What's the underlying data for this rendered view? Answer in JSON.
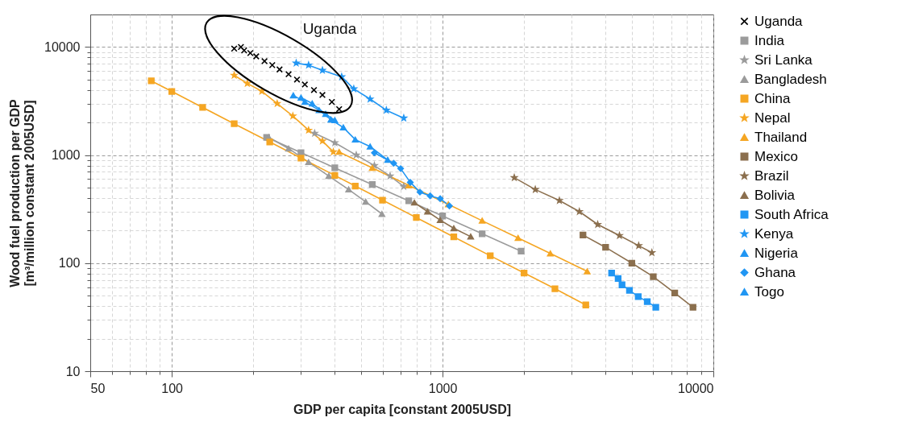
{
  "chart_data": {
    "type": "line",
    "xlabel": "GDP per capita [constant 2005USD]",
    "ylabel": "Wood fuel production per GDP [m³/million constant 2005USD]",
    "log": "xy",
    "grid": true,
    "legend": "right",
    "xlim": [
      50,
      10000
    ],
    "ylim": [
      10,
      20000
    ],
    "xticks": [
      50,
      {
        "value": 60,
        "label": null
      },
      {
        "value": 70,
        "label": null
      },
      {
        "value": 80,
        "label": null
      },
      {
        "value": 90,
        "label": null
      },
      100,
      {
        "value": 200,
        "label": null
      },
      {
        "value": 300,
        "label": null
      },
      {
        "value": 400,
        "label": null
      },
      {
        "value": 500,
        "label": null
      },
      {
        "value": 600,
        "label": null
      },
      {
        "value": 700,
        "label": null
      },
      {
        "value": 800,
        "label": null
      },
      {
        "value": 900,
        "label": null
      },
      1000,
      {
        "value": 2000,
        "label": null
      },
      {
        "value": 3000,
        "label": null
      },
      {
        "value": 4000,
        "label": null
      },
      {
        "value": 5000,
        "label": null
      },
      {
        "value": 6000,
        "label": null
      },
      {
        "value": 7000,
        "label": null
      },
      {
        "value": 8000,
        "label": null
      },
      {
        "value": 9000,
        "label": null
      },
      10000
    ],
    "yticks": [
      10,
      {
        "value": 20,
        "label": null
      },
      {
        "value": 30,
        "label": null
      },
      {
        "value": 40,
        "label": null
      },
      {
        "value": 50,
        "label": null
      },
      {
        "value": 60,
        "label": null
      },
      {
        "value": 70,
        "label": null
      },
      {
        "value": 80,
        "label": null
      },
      {
        "value": 90,
        "label": null
      },
      100,
      {
        "value": 200,
        "label": null
      },
      {
        "value": 300,
        "label": null
      },
      {
        "value": 400,
        "label": null
      },
      {
        "value": 500,
        "label": null
      },
      {
        "value": 600,
        "label": null
      },
      {
        "value": 700,
        "label": null
      },
      {
        "value": 800,
        "label": null
      },
      {
        "value": 900,
        "label": null
      },
      1000,
      {
        "value": 2000,
        "label": null
      },
      {
        "value": 3000,
        "label": null
      },
      {
        "value": 4000,
        "label": null
      },
      {
        "value": 5000,
        "label": null
      },
      {
        "value": 6000,
        "label": null
      },
      {
        "value": 7000,
        "label": null
      },
      {
        "value": 8000,
        "label": null
      },
      {
        "value": 9000,
        "label": null
      },
      10000
    ],
    "annotations": [
      "Uganda"
    ],
    "series": [
      {
        "name": "Uganda",
        "type": "scatter",
        "marker": "cross",
        "color": "#000000",
        "x": [
          170,
          180,
          185,
          195,
          205,
          220,
          235,
          250,
          270,
          290,
          310,
          335,
          360,
          390,
          415
        ],
        "values": [
          9670,
          10000,
          9300,
          8800,
          8200,
          7400,
          6800,
          6200,
          5600,
          5000,
          4500,
          4000,
          3600,
          3100,
          2660
        ]
      },
      {
        "name": "India",
        "marker": "square",
        "color": "#9b9b9b",
        "x": [
          224,
          300,
          400,
          550,
          750,
          1000,
          1400,
          1950
        ],
        "values": [
          1460,
          1053,
          762,
          534,
          377,
          273,
          187,
          129
        ]
      },
      {
        "name": "Sri Lanka",
        "marker": "star",
        "color": "#9b9b9b",
        "x": [
          337,
          400,
          480,
          560,
          640,
          719
        ],
        "values": [
          1590,
          1300,
          1000,
          800,
          640,
          512
        ]
      },
      {
        "name": "Bangladesh",
        "marker": "triangle",
        "color": "#9b9b9b",
        "x": [
          228,
          270,
          320,
          380,
          450,
          520,
          597
        ],
        "values": [
          1460,
          1150,
          860,
          640,
          480,
          370,
          285
        ]
      },
      {
        "name": "China",
        "marker": "square",
        "color": "#f5a623",
        "x": [
          84,
          100,
          130,
          170,
          230,
          300,
          400,
          476,
          600,
          800,
          1100,
          1500,
          2000,
          2600,
          3380
        ],
        "values": [
          4860,
          3880,
          2760,
          1950,
          1323,
          938,
          648,
          517,
          383,
          264,
          175,
          117,
          81,
          58,
          41
        ]
      },
      {
        "name": "Nepal",
        "marker": "star",
        "color": "#f5a623",
        "x": [
          170,
          190,
          215,
          245,
          280,
          320,
          360,
          395
        ],
        "values": [
          5480,
          4600,
          3900,
          3000,
          2300,
          1700,
          1350,
          1070
        ]
      },
      {
        "name": "Thailand",
        "marker": "triangle",
        "color": "#f5a623",
        "x": [
          415,
          550,
          750,
          1050,
          1400,
          1900,
          2500,
          3420
        ],
        "values": [
          1070,
          762,
          524,
          350,
          247,
          171,
          123,
          84
        ]
      },
      {
        "name": "Mexico",
        "marker": "square",
        "color": "#8b6f4e",
        "x": [
          3300,
          4000,
          5000,
          6000,
          7200,
          8410
        ],
        "values": [
          182,
          140,
          100,
          75,
          53,
          39
        ]
      },
      {
        "name": "Brazil",
        "marker": "star",
        "color": "#8b6f4e",
        "x": [
          1840,
          2200,
          2700,
          3200,
          3740,
          4500,
          5300,
          5930
        ],
        "values": [
          618,
          480,
          380,
          300,
          228,
          180,
          145,
          125
        ]
      },
      {
        "name": "Bolivia",
        "marker": "triangle",
        "color": "#8b6f4e",
        "x": [
          787,
          880,
          980,
          1100,
          1270
        ],
        "values": [
          363,
          300,
          250,
          210,
          176
        ]
      },
      {
        "name": "South Africa",
        "marker": "square",
        "color": "#2196f3",
        "x": [
          4210,
          4450,
          4600,
          4900,
          5280,
          5700,
          6130
        ],
        "values": [
          81,
          72,
          63,
          56,
          49,
          44,
          39
        ]
      },
      {
        "name": "Kenya",
        "marker": "star",
        "color": "#2196f3",
        "x": [
          288,
          320,
          360,
          424,
          470,
          540,
          620,
          719
        ],
        "values": [
          7100,
          6800,
          6100,
          5300,
          4100,
          3300,
          2600,
          2200
        ]
      },
      {
        "name": "Nigeria",
        "marker": "triangle",
        "color": "#2196f3",
        "x": [
          281,
          310,
          350,
          387,
          430,
          476,
          540,
          627
        ],
        "values": [
          3570,
          3100,
          2600,
          2130,
          1800,
          1390,
          1200,
          902
        ]
      },
      {
        "name": "Ghana",
        "marker": "diamond",
        "color": "#2196f3",
        "x": [
          560,
          660,
          700,
          760,
          825,
          900,
          980,
          1060
        ],
        "values": [
          1050,
          840,
          750,
          560,
          454,
          420,
          395,
          339
        ]
      },
      {
        "name": "Togo",
        "marker": "triangle",
        "color": "#2196f3",
        "x": [
          300,
          330,
          370,
          400
        ],
        "values": [
          3400,
          3000,
          2400,
          2100
        ]
      }
    ]
  }
}
